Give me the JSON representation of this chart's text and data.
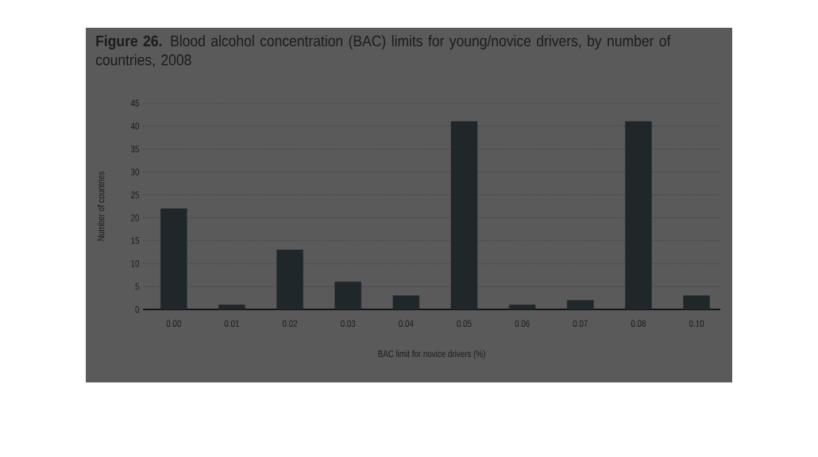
{
  "chart_data": {
    "type": "bar",
    "title": "**Figure 26.** Blood alcohol concentration (BAC) limits for young/novice drivers, by number of countries, 2008",
    "xlabel": "BAC limit for novice drivers (%)",
    "ylabel": "Number of countries",
    "categories": [
      "0.00",
      "0.01",
      "0.02",
      "0.03",
      "0.04",
      "0.05",
      "0.06",
      "0.07",
      "0.08",
      "0.10"
    ],
    "values": [
      22,
      1,
      13,
      6,
      3,
      41,
      1,
      2,
      41,
      3
    ],
    "color": "#1f272b",
    "ylim": [
      0,
      45
    ],
    "yticks": [
      0,
      5,
      10,
      15,
      20,
      25,
      30,
      35,
      40,
      45
    ],
    "grid": "y"
  }
}
